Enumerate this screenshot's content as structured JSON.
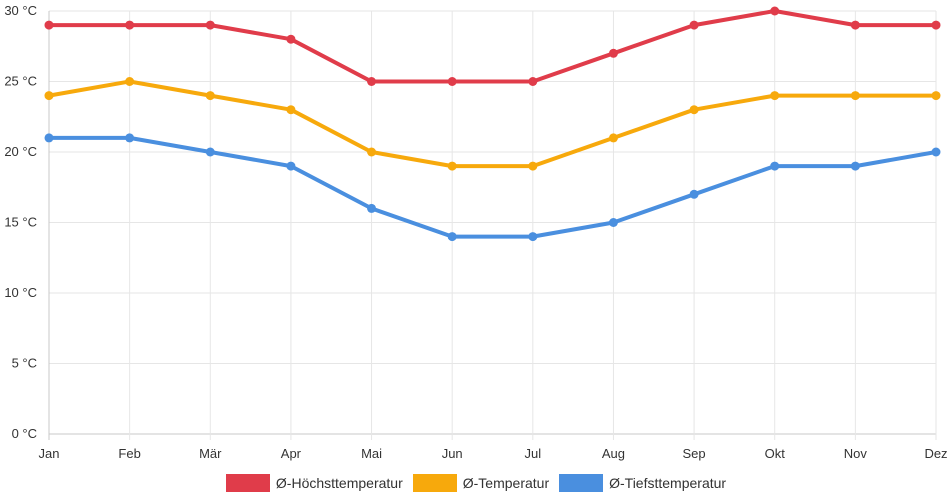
{
  "chart_data": {
    "type": "line",
    "categories": [
      "Jan",
      "Feb",
      "Mär",
      "Apr",
      "Mai",
      "Jun",
      "Jul",
      "Aug",
      "Sep",
      "Okt",
      "Nov",
      "Dez"
    ],
    "series": [
      {
        "name": "Ø-Höchsttemperatur",
        "color": "#e03c4a",
        "values": [
          29,
          29,
          29,
          28,
          25,
          25,
          25,
          27,
          29,
          30,
          29,
          29
        ]
      },
      {
        "name": "Ø-Temperatur",
        "color": "#f7a90c",
        "values": [
          24,
          25,
          24,
          23,
          20,
          19,
          19,
          21,
          23,
          24,
          24,
          24
        ]
      },
      {
        "name": "Ø-Tiefsttemperatur",
        "color": "#4a8fdf",
        "values": [
          21,
          21,
          20,
          19,
          16,
          14,
          14,
          15,
          17,
          19,
          19,
          20
        ]
      }
    ],
    "y_ticks": [
      "0 °C",
      "5 °C",
      "10 °C",
      "15 °C",
      "20 °C",
      "25 °C",
      "30 °C"
    ],
    "ylim": [
      0,
      30
    ],
    "ytick_step": 5,
    "grid": true,
    "legend_position": "bottom"
  }
}
